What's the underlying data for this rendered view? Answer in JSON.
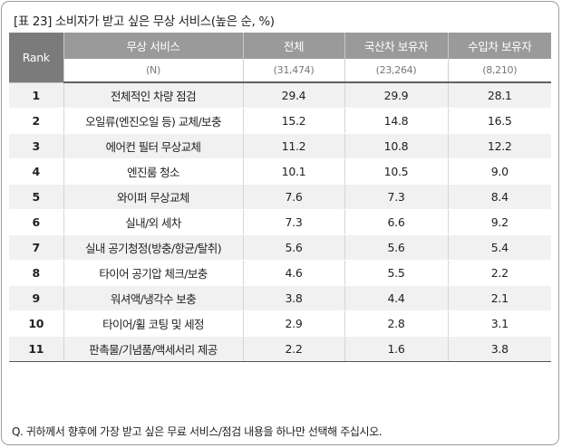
{
  "title": "[표 23] 소비자가 받고 싶은 무상 서비스(높은 순, %)",
  "header": {
    "rank": "Rank",
    "service": "무상 서비스",
    "all": "전체",
    "domestic": "국산차 보유자",
    "imported": "수입차 보유자"
  },
  "n_row": {
    "service": "(N)",
    "all": "(31,474)",
    "domestic": "(23,264)",
    "imported": "(8,210)"
  },
  "rows": [
    {
      "rank": "1",
      "service": "전체적인 차량 점검",
      "all": "29.4",
      "domestic": "29.9",
      "imported": "28.1"
    },
    {
      "rank": "2",
      "service": "오일류(엔진오일 등) 교체/보충",
      "all": "15.2",
      "domestic": "14.8",
      "imported": "16.5"
    },
    {
      "rank": "3",
      "service": "에어컨 필터 무상교체",
      "all": "11.2",
      "domestic": "10.8",
      "imported": "12.2"
    },
    {
      "rank": "4",
      "service": "엔진룸 청소",
      "all": "10.1",
      "domestic": "10.5",
      "imported": "9.0"
    },
    {
      "rank": "5",
      "service": "와이퍼 무상교체",
      "all": "7.6",
      "domestic": "7.3",
      "imported": "8.4"
    },
    {
      "rank": "6",
      "service": "실내/외 세차",
      "all": "7.3",
      "domestic": "6.6",
      "imported": "9.2"
    },
    {
      "rank": "7",
      "service": "실내 공기청정(방충/항균/탈취)",
      "all": "5.6",
      "domestic": "5.6",
      "imported": "5.4"
    },
    {
      "rank": "8",
      "service": "타이어 공기압 체크/보충",
      "all": "4.6",
      "domestic": "5.5",
      "imported": "2.2"
    },
    {
      "rank": "9",
      "service": "워셔액/냉각수 보충",
      "all": "3.8",
      "domestic": "4.4",
      "imported": "2.1"
    },
    {
      "rank": "10",
      "service": "타이어/휠 코팅 및 세정",
      "all": "2.9",
      "domestic": "2.8",
      "imported": "3.1"
    },
    {
      "rank": "11",
      "service": "판촉물/기념품/액세서리 제공",
      "all": "2.2",
      "domestic": "1.6",
      "imported": "3.8"
    }
  ],
  "footnote": "Q. 귀하께서 향후에 가장 받고 싶은 무료 서비스/점검 내용을 하나만 선택해 주십시오."
}
